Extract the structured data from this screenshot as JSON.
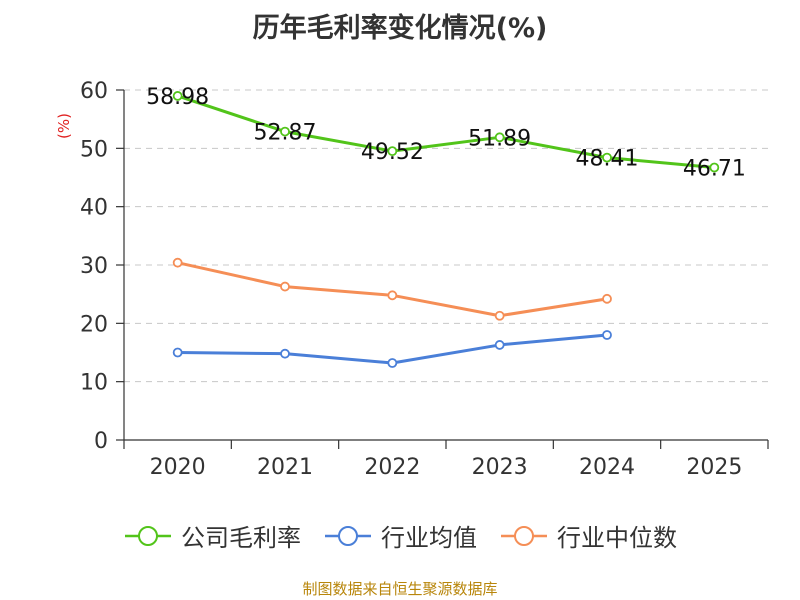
{
  "chart_data": {
    "type": "line",
    "title": "历年毛利率变化情况(%)",
    "ylabel": "(%)",
    "xlabel": "",
    "categories": [
      "2020",
      "2021",
      "2022",
      "2023",
      "2024",
      "2025"
    ],
    "ylim": [
      0,
      60
    ],
    "yticks": [
      0,
      10,
      20,
      30,
      40,
      50,
      60
    ],
    "grid": true,
    "legend_position": "bottom",
    "series": [
      {
        "name": "公司毛利率",
        "color": "#52c41a",
        "values": [
          58.98,
          52.87,
          49.52,
          51.89,
          48.41,
          46.71
        ],
        "show_labels": true
      },
      {
        "name": "行业均值",
        "color": "#4a7fd8",
        "values": [
          15.0,
          14.8,
          13.2,
          16.3,
          18.0,
          null
        ],
        "show_labels": false
      },
      {
        "name": "行业中位数",
        "color": "#f58e56",
        "values": [
          30.4,
          26.3,
          24.8,
          21.3,
          24.2,
          null
        ],
        "show_labels": false
      }
    ]
  },
  "source": "制图数据来自恒生聚源数据库"
}
